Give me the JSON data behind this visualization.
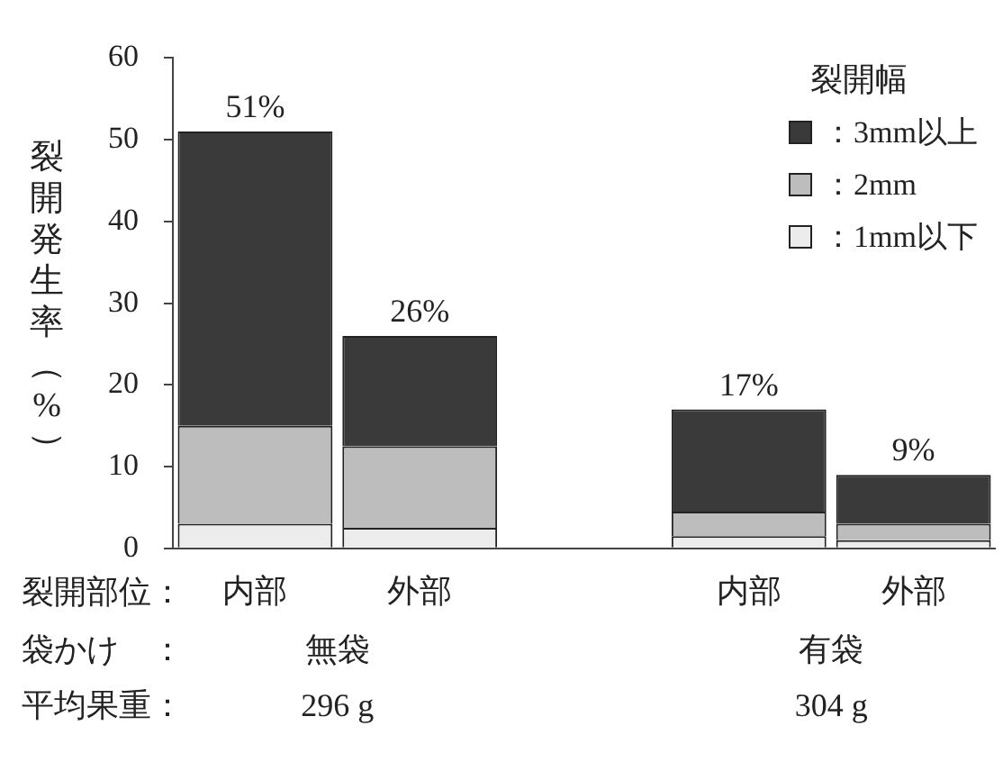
{
  "chart_data": {
    "type": "bar",
    "stacked": true,
    "ylabel": "裂開発生率（%）",
    "legend_title": "裂開幅",
    "legend": "top right",
    "grid": false,
    "categories": [
      "内部",
      "外部",
      null,
      "内部",
      "外部"
    ],
    "series": [
      {
        "name": "：1mm以下",
        "color": "#ececec",
        "values": [
          3,
          2.5,
          null,
          1.5,
          1
        ]
      },
      {
        "name": "：2mm",
        "color": "#bdbdbd",
        "values": [
          12,
          10,
          null,
          3,
          2
        ]
      },
      {
        "name": "：3mm以上",
        "color": "#3a3a3a",
        "values": [
          36,
          13.5,
          null,
          12.5,
          6
        ]
      }
    ],
    "totals": [
      "51%",
      "26%",
      null,
      "17%",
      "9%"
    ],
    "ylim": [
      0,
      60
    ],
    "yticks": [
      0,
      10,
      20,
      30,
      40,
      50,
      60
    ],
    "annotations": [
      "裂開部位：",
      "袋かけ　：",
      "無袋",
      "有袋",
      "平均果重：",
      "296 g",
      "304 g"
    ]
  }
}
